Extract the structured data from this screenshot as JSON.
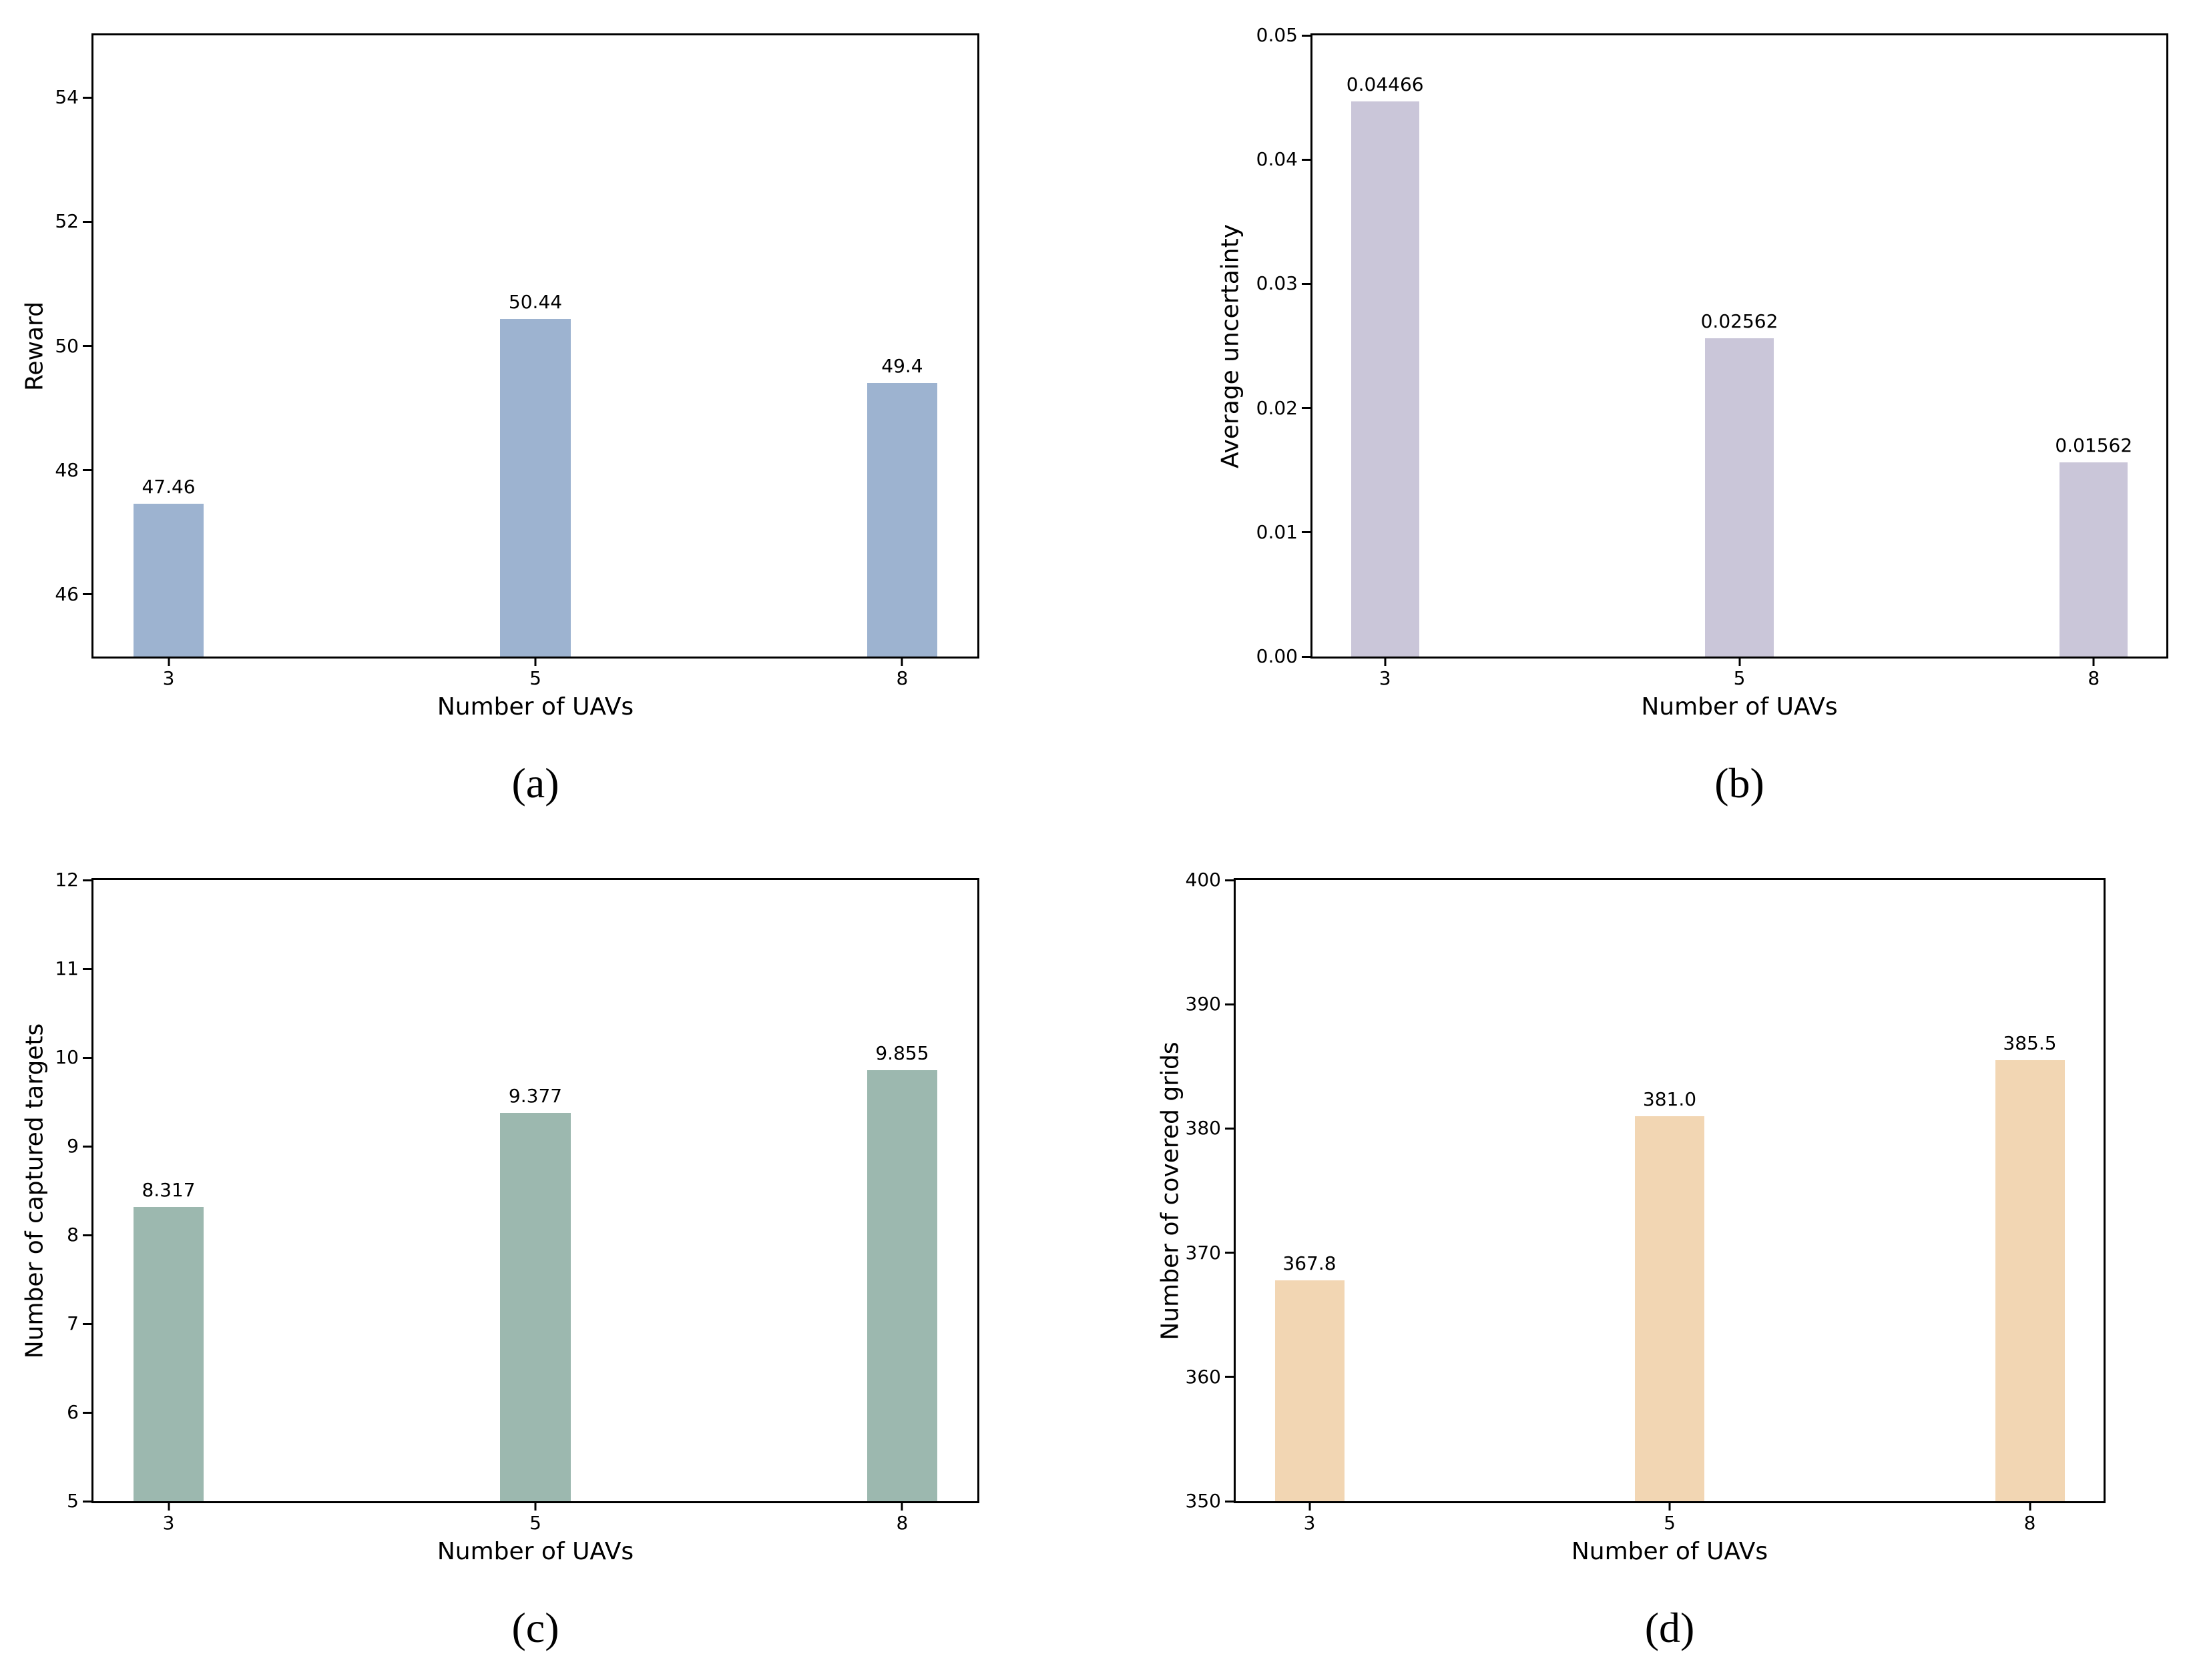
{
  "figure": {
    "background": "#ffffff",
    "text_color": "#000000",
    "axis_color": "#000000"
  },
  "chart_data": [
    {
      "id": "a",
      "type": "bar",
      "caption": "(a)",
      "xlabel": "Number of UAVs",
      "ylabel": "Reward",
      "categories": [
        "3",
        "5",
        "8"
      ],
      "values": [
        47.46,
        50.44,
        49.4
      ],
      "value_labels": [
        "47.46",
        "50.44",
        "49.4"
      ],
      "bar_color": "#9db3d0",
      "ylim": [
        45,
        55
      ],
      "yticks": [
        46,
        48,
        50,
        52,
        54
      ],
      "ytick_labels": [
        "46",
        "48",
        "50",
        "52",
        "54"
      ],
      "grid": false,
      "legend": "none"
    },
    {
      "id": "b",
      "type": "bar",
      "caption": "(b)",
      "xlabel": "Number of UAVs",
      "ylabel": "Average uncertainty",
      "categories": [
        "3",
        "5",
        "8"
      ],
      "values": [
        0.04466,
        0.02562,
        0.01562
      ],
      "value_labels": [
        "0.04466",
        "0.02562",
        "0.01562"
      ],
      "bar_color": "#cac6d9",
      "ylim": [
        0,
        0.05
      ],
      "yticks": [
        0,
        0.01,
        0.02,
        0.03,
        0.04,
        0.05
      ],
      "ytick_labels": [
        "0.00",
        "0.01",
        "0.02",
        "0.03",
        "0.04",
        "0.05"
      ],
      "grid": false,
      "legend": "none"
    },
    {
      "id": "c",
      "type": "bar",
      "caption": "(c)",
      "xlabel": "Number of UAVs",
      "ylabel": "Number of captured targets",
      "categories": [
        "3",
        "5",
        "8"
      ],
      "values": [
        8.317,
        9.377,
        9.855
      ],
      "value_labels": [
        "8.317",
        "9.377",
        "9.855"
      ],
      "bar_color": "#9cb8af",
      "ylim": [
        5,
        12
      ],
      "yticks": [
        5,
        6,
        7,
        8,
        9,
        10,
        11,
        12
      ],
      "ytick_labels": [
        "5",
        "6",
        "7",
        "8",
        "9",
        "10",
        "11",
        "12"
      ],
      "grid": false,
      "legend": "none"
    },
    {
      "id": "d",
      "type": "bar",
      "caption": "(d)",
      "xlabel": "Number of UAVs",
      "ylabel": "Number of covered grids",
      "categories": [
        "3",
        "5",
        "8"
      ],
      "values": [
        367.8,
        381.0,
        385.5
      ],
      "value_labels": [
        "367.8",
        "381.0",
        "385.5"
      ],
      "bar_color": "#f2d6b3",
      "ylim": [
        350,
        400
      ],
      "yticks": [
        350,
        360,
        370,
        380,
        390,
        400
      ],
      "ytick_labels": [
        "350",
        "360",
        "370",
        "380",
        "390",
        "400"
      ],
      "grid": false,
      "legend": "none"
    }
  ]
}
